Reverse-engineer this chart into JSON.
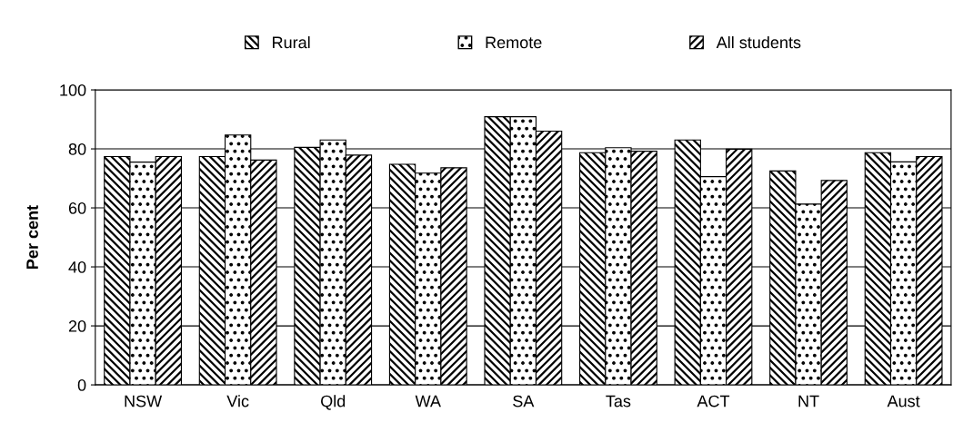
{
  "chart_data": {
    "type": "bar",
    "ylabel": "Per cent",
    "categories": [
      "NSW",
      "Vic",
      "Qld",
      "WA",
      "SA",
      "Tas",
      "ACT",
      "NT",
      "Aust"
    ],
    "series": [
      {
        "name": "Rural",
        "color": "#000000",
        "values": [
          77.4,
          77.4,
          80.5,
          74.8,
          90.9,
          78.7,
          83.0,
          72.5,
          78.7
        ]
      },
      {
        "name": "Remote",
        "color": "#000000",
        "values": [
          75.5,
          84.7,
          83.0,
          71.8,
          90.9,
          80.4,
          70.6,
          61.3,
          75.6
        ]
      },
      {
        "name": "All students",
        "color": "#000000",
        "values": [
          77.4,
          76.2,
          77.9,
          73.6,
          86.0,
          79.2,
          79.9,
          69.3,
          77.4
        ]
      }
    ],
    "ylim": [
      0,
      100
    ],
    "yticks": [
      0,
      20,
      40,
      60,
      80,
      100
    ],
    "grid": "y",
    "legend": "top"
  }
}
